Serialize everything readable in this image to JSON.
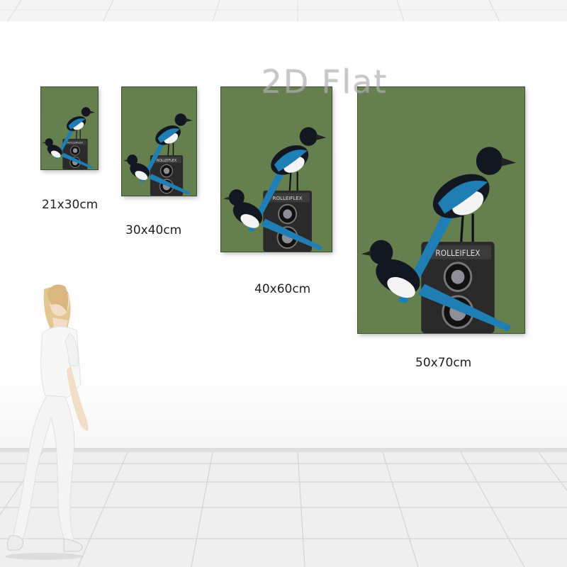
{
  "watermark": "2D Flat",
  "camera_brand": "ROLLEIFLEX",
  "sizes": {
    "s1": "21x30cm",
    "s2": "30x40cm",
    "s3": "40x60cm",
    "s4": "50x70cm"
  },
  "colors": {
    "poster_bg": "#667f4f",
    "magpie_blue": "#1f7fb4",
    "magpie_black": "#121722",
    "camera_body": "#2a2a2a"
  }
}
